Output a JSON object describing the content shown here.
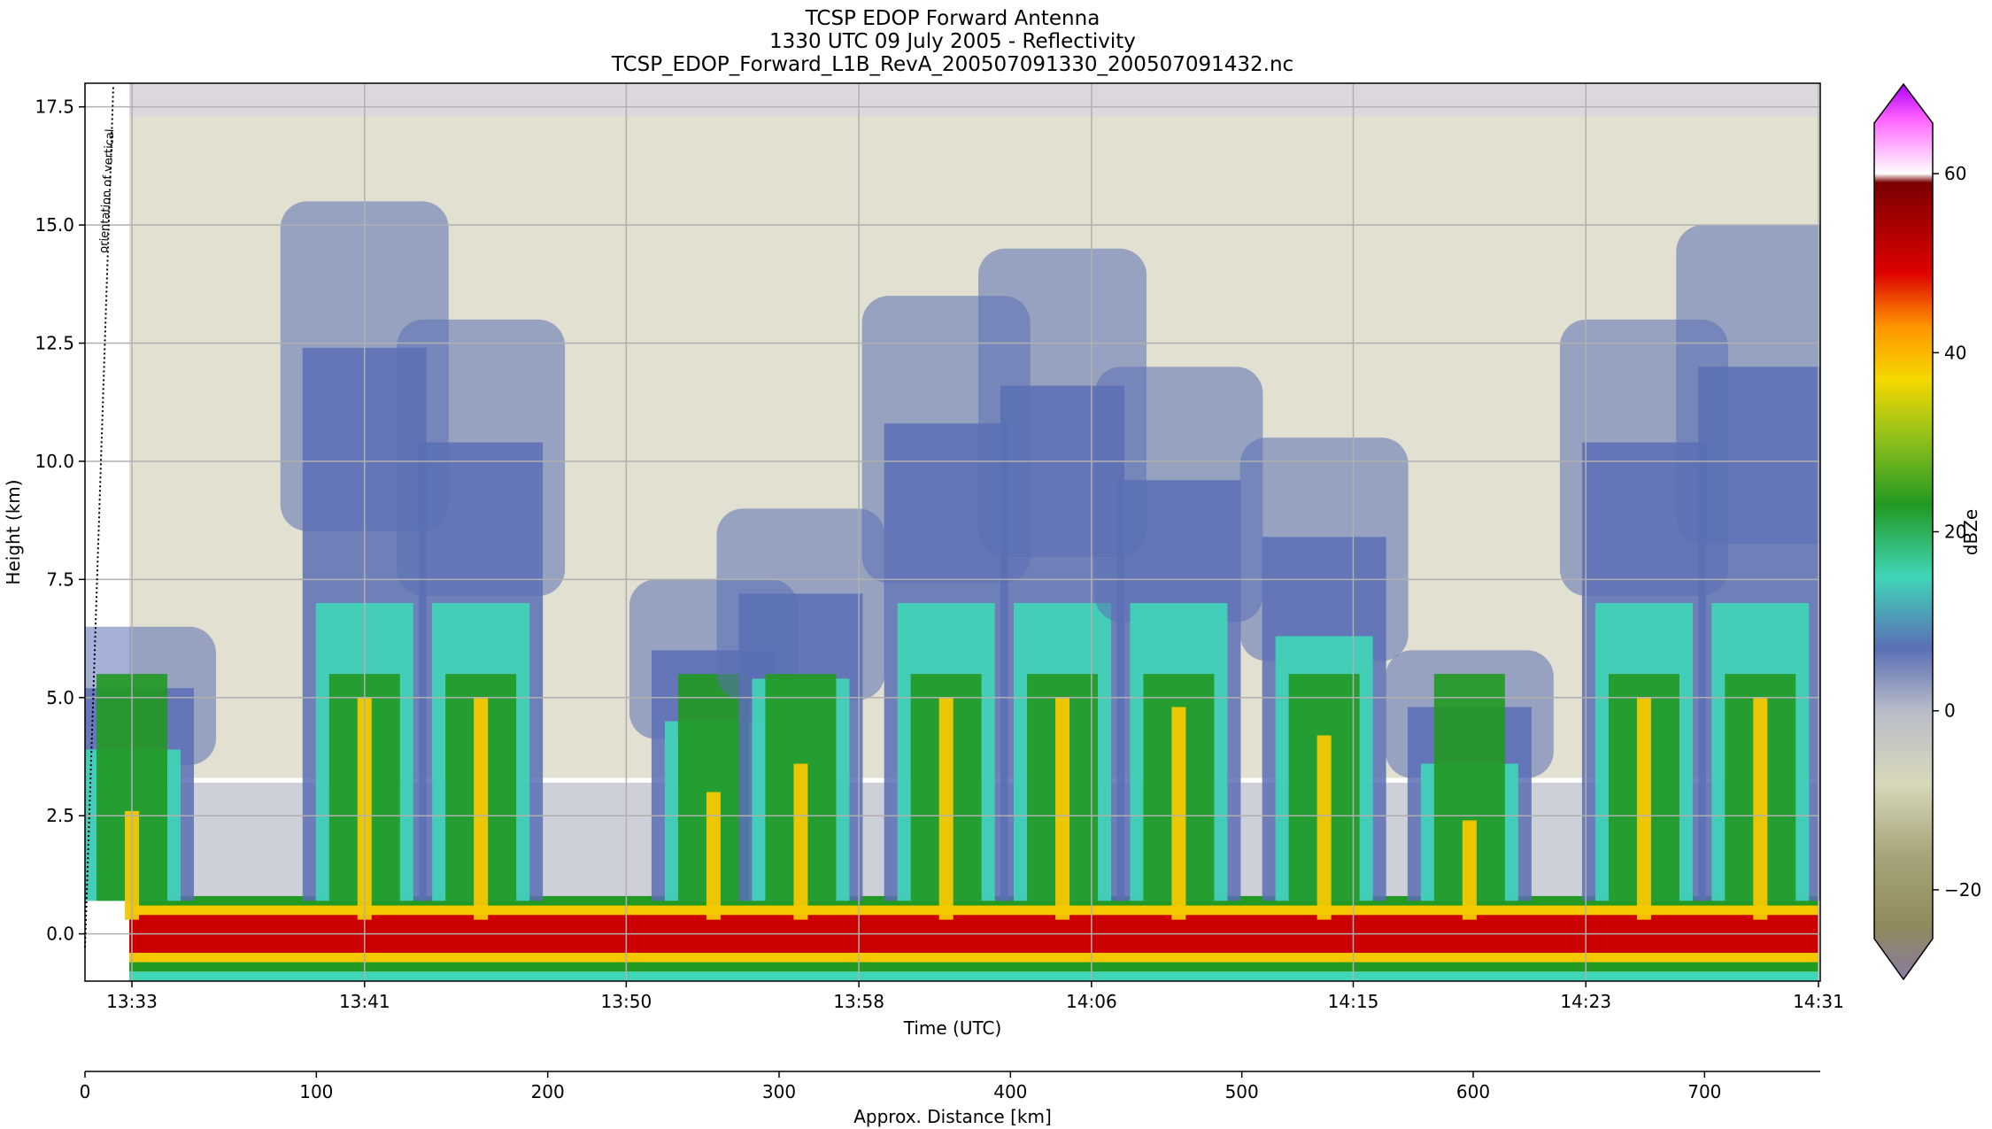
{
  "chart_data": {
    "type": "heatmap",
    "title_lines": [
      "TCSP EDOP Forward Antenna",
      "1330 UTC 09 July 2005 - Reflectivity",
      "TCSP_EDOP_Forward_L1B_RevA_200507091330_200507091432.nc"
    ],
    "xlabel": "Time (UTC)",
    "ylabel": "Height (km)",
    "x_ticks": [
      "13:33",
      "13:41",
      "13:50",
      "13:58",
      "14:06",
      "14:15",
      "14:23",
      "14:31"
    ],
    "y_ticks": [
      "0.0",
      "2.5",
      "5.0",
      "7.5",
      "10.0",
      "12.5",
      "15.0",
      "17.5"
    ],
    "ylim": [
      -1.0,
      18.0
    ],
    "grid": true,
    "annotation": "orientation of vertical",
    "colorbar": {
      "label": "dBZe",
      "ticks": [
        "60",
        "40",
        "20",
        "0",
        "−20"
      ],
      "range": [
        -30,
        70
      ]
    },
    "distance_axis": {
      "label": "Approx. Distance [km]",
      "ticks": [
        "0",
        "100",
        "200",
        "300",
        "400",
        "500",
        "600",
        "700"
      ],
      "range": [
        0,
        750
      ]
    },
    "colors": {
      "surface": "#cc0000",
      "convective_core": "#f5c800",
      "moderate": "#229922",
      "weak": "#3fd6b8",
      "anvil": "#5b6fb5",
      "cloud_edge": "#b8bcc8",
      "noise": "#a8a67a"
    },
    "convective_columns": [
      {
        "time": "13:33",
        "top_km": 6.5
      },
      {
        "time": "13:41",
        "top_km": 15.5
      },
      {
        "time": "13:45",
        "top_km": 13.0
      },
      {
        "time": "13:53",
        "top_km": 7.5
      },
      {
        "time": "13:56",
        "top_km": 9.0
      },
      {
        "time": "14:01",
        "top_km": 13.5
      },
      {
        "time": "14:05",
        "top_km": 14.5
      },
      {
        "time": "14:09",
        "top_km": 12.0
      },
      {
        "time": "14:14",
        "top_km": 10.5
      },
      {
        "time": "14:19",
        "top_km": 6.0
      },
      {
        "time": "14:25",
        "top_km": 13.0
      },
      {
        "time": "14:29",
        "top_km": 15.0
      }
    ]
  }
}
